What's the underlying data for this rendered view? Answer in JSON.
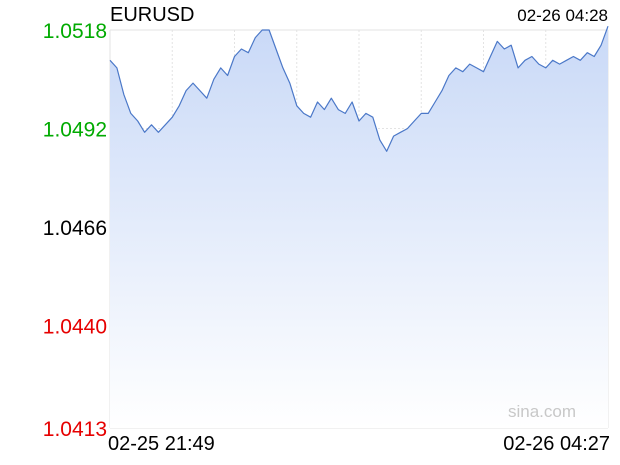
{
  "header": {
    "symbol": "EURUSD",
    "timestamp": "02-26 04:28"
  },
  "watermark": "sina.com",
  "colors": {
    "up": "#00aa00",
    "down": "#e60000",
    "neutral": "#000000",
    "line": "#4b78c8",
    "fill_top": "#c9d9f7",
    "fill_bottom": "#ffffff",
    "grid": "#e3e3e3",
    "baseline": "#8c8cb4"
  },
  "chart_data": {
    "type": "area",
    "xlabel": "",
    "ylabel": "",
    "x_tick_labels": [
      "02-25 21:49",
      "02-26 04:27"
    ],
    "y_tick_labels": [
      {
        "label": "1.0518",
        "value": 1.0518,
        "trend": "up"
      },
      {
        "label": "1.0492",
        "value": 1.0492,
        "trend": "up"
      },
      {
        "label": "1.0466",
        "value": 1.0466,
        "trend": "neutral"
      },
      {
        "label": "1.0440",
        "value": 1.044,
        "trend": "down"
      },
      {
        "label": "1.0413",
        "value": 1.0413,
        "trend": "down"
      }
    ],
    "ylim": [
      1.0413,
      1.0518
    ],
    "reference_value": 1.0466,
    "grid": true,
    "series": [
      {
        "values": [
          1.051,
          1.0508,
          1.0501,
          1.0496,
          1.0494,
          1.0491,
          1.0493,
          1.0491,
          1.0493,
          1.0495,
          1.0498,
          1.0502,
          1.0504,
          1.0502,
          1.05,
          1.0505,
          1.0508,
          1.0506,
          1.0511,
          1.0513,
          1.0512,
          1.0516,
          1.0518,
          1.0518,
          1.0513,
          1.0508,
          1.0504,
          1.0498,
          1.0496,
          1.0495,
          1.0499,
          1.0497,
          1.05,
          1.0497,
          1.0496,
          1.0499,
          1.0494,
          1.0496,
          1.0495,
          1.0489,
          1.0486,
          1.049,
          1.0491,
          1.0492,
          1.0494,
          1.0496,
          1.0496,
          1.0499,
          1.0502,
          1.0506,
          1.0508,
          1.0507,
          1.0509,
          1.0508,
          1.0507,
          1.0511,
          1.0515,
          1.0513,
          1.0514,
          1.0508,
          1.051,
          1.0511,
          1.0509,
          1.0508,
          1.051,
          1.0509,
          1.051,
          1.0511,
          1.051,
          1.0512,
          1.0511,
          1.0514,
          1.0519
        ]
      }
    ]
  }
}
